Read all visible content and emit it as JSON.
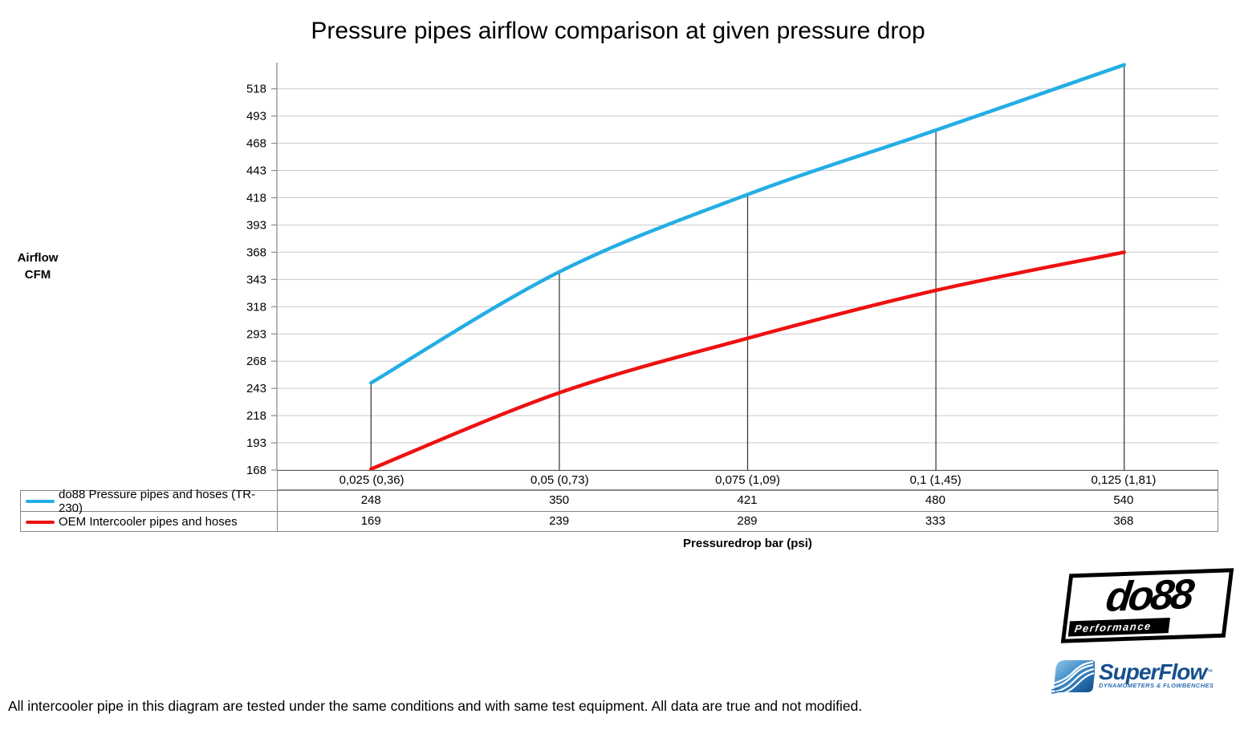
{
  "title": "Pressure pipes airflow comparison at given pressure drop",
  "y_axis": {
    "label_line1": "Airflow",
    "label_line2": "CFM"
  },
  "x_axis": {
    "label": "Pressuredrop bar (psi)"
  },
  "chart_data": {
    "type": "line",
    "title": "Pressure pipes airflow comparison at given pressure drop",
    "categories": [
      "0,025 (0,36)",
      "0,05 (0,73)",
      "0,075 (1,09)",
      "0,1 (1,45)",
      "0,125 (1,81)"
    ],
    "series": [
      {
        "name": "do88 Pressure pipes and hoses (TR-230)",
        "color": "#23aee4",
        "values": [
          248,
          350,
          421,
          480,
          540
        ]
      },
      {
        "name": "OEM Intercooler pipes and hoses",
        "color": "#ee1111",
        "values": [
          169,
          239,
          289,
          333,
          368
        ]
      }
    ],
    "xlabel": "Pressuredrop bar (psi)",
    "ylabel": "Airflow CFM",
    "y_ticks": [
      168,
      193,
      218,
      243,
      268,
      293,
      318,
      343,
      368,
      393,
      418,
      443,
      468,
      493,
      518
    ],
    "ylim": [
      168,
      543
    ],
    "grid": true,
    "legend_position": "table-left",
    "colors": {
      "gridline": "#c9c9c9",
      "axis": "#8c8c8c",
      "dropline": "#404040"
    }
  },
  "footnote": "All intercooler pipe in this diagram are tested under the same conditions and with same test equipment. All data are true and not modified.",
  "logos": {
    "do88": {
      "text": "do88",
      "subtext": "Performance"
    },
    "superflow": {
      "text": "SuperFlow",
      "tm": "™",
      "subtext": "DYNAMOMETERS & FLOWBENCHES"
    }
  }
}
